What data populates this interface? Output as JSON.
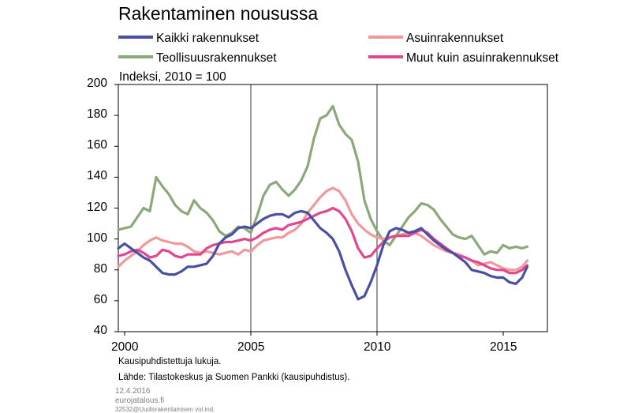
{
  "chart_data": {
    "type": "line",
    "title": "Rakentaminen nousussa",
    "unit_label": "Indeksi, 2010 = 100",
    "xlim": [
      1999.75,
      2016.75
    ],
    "ylim": [
      40,
      200
    ],
    "yticks": [
      40,
      60,
      80,
      100,
      120,
      140,
      160,
      180,
      200
    ],
    "xticks": [
      2000,
      2005,
      2010,
      2015
    ],
    "xtick_labels": [
      "2000",
      "2005",
      "2010",
      "2015"
    ],
    "grid": "vertical lines at 2005 and 2010",
    "legend_position": "top",
    "series": [
      {
        "name": "Kaikki rakennukset",
        "color": "#4a4fa3",
        "points": [
          [
            1999.75,
            94
          ],
          [
            2000,
            97
          ],
          [
            2000.25,
            94
          ],
          [
            2000.5,
            91
          ],
          [
            2000.75,
            88
          ],
          [
            2001,
            86
          ],
          [
            2001.25,
            82
          ],
          [
            2001.5,
            78
          ],
          [
            2001.75,
            77
          ],
          [
            2002,
            77
          ],
          [
            2002.25,
            79
          ],
          [
            2002.5,
            82
          ],
          [
            2002.75,
            82
          ],
          [
            2003,
            83
          ],
          [
            2003.25,
            84
          ],
          [
            2003.5,
            89
          ],
          [
            2003.75,
            97
          ],
          [
            2004,
            101
          ],
          [
            2004.25,
            103
          ],
          [
            2004.5,
            107
          ],
          [
            2004.75,
            108
          ],
          [
            2005,
            107
          ],
          [
            2005.25,
            110
          ],
          [
            2005.5,
            113
          ],
          [
            2005.75,
            115
          ],
          [
            2006,
            116
          ],
          [
            2006.25,
            116
          ],
          [
            2006.5,
            114
          ],
          [
            2006.75,
            117
          ],
          [
            2007,
            118
          ],
          [
            2007.25,
            117
          ],
          [
            2007.5,
            112
          ],
          [
            2007.75,
            107
          ],
          [
            2008,
            104
          ],
          [
            2008.25,
            100
          ],
          [
            2008.5,
            92
          ],
          [
            2008.75,
            80
          ],
          [
            2009,
            70
          ],
          [
            2009.25,
            61
          ],
          [
            2009.5,
            63
          ],
          [
            2009.75,
            72
          ],
          [
            2010,
            83
          ],
          [
            2010.25,
            96
          ],
          [
            2010.5,
            105
          ],
          [
            2010.75,
            107
          ],
          [
            2011,
            106
          ],
          [
            2011.25,
            104
          ],
          [
            2011.5,
            105
          ],
          [
            2011.75,
            107
          ],
          [
            2012,
            103
          ],
          [
            2012.25,
            99
          ],
          [
            2012.5,
            96
          ],
          [
            2012.75,
            93
          ],
          [
            2013,
            91
          ],
          [
            2013.25,
            88
          ],
          [
            2013.5,
            85
          ],
          [
            2013.75,
            80
          ],
          [
            2014,
            79
          ],
          [
            2014.25,
            78
          ],
          [
            2014.5,
            76
          ],
          [
            2014.75,
            75
          ],
          [
            2015,
            75
          ],
          [
            2015.25,
            72
          ],
          [
            2015.5,
            71
          ],
          [
            2015.75,
            75
          ],
          [
            2015.95,
            82
          ]
        ]
      },
      {
        "name": "Asuinrakennukset",
        "color": "#f0999d",
        "points": [
          [
            1999.75,
            82
          ],
          [
            2000,
            86
          ],
          [
            2000.25,
            89
          ],
          [
            2000.5,
            92
          ],
          [
            2000.75,
            96
          ],
          [
            2001,
            99
          ],
          [
            2001.25,
            101
          ],
          [
            2001.5,
            99
          ],
          [
            2001.75,
            98
          ],
          [
            2002,
            97
          ],
          [
            2002.25,
            97
          ],
          [
            2002.5,
            95
          ],
          [
            2002.75,
            92
          ],
          [
            2003,
            91
          ],
          [
            2003.25,
            92
          ],
          [
            2003.5,
            91
          ],
          [
            2003.75,
            90
          ],
          [
            2004,
            91
          ],
          [
            2004.25,
            92
          ],
          [
            2004.5,
            90
          ],
          [
            2004.75,
            93
          ],
          [
            2005,
            92
          ],
          [
            2005.25,
            96
          ],
          [
            2005.5,
            99
          ],
          [
            2005.75,
            100
          ],
          [
            2006,
            101
          ],
          [
            2006.25,
            101
          ],
          [
            2006.5,
            104
          ],
          [
            2006.75,
            106
          ],
          [
            2007,
            110
          ],
          [
            2007.25,
            117
          ],
          [
            2007.5,
            122
          ],
          [
            2007.75,
            127
          ],
          [
            2008,
            131
          ],
          [
            2008.25,
            133
          ],
          [
            2008.5,
            131
          ],
          [
            2008.75,
            125
          ],
          [
            2009,
            116
          ],
          [
            2009.25,
            110
          ],
          [
            2009.5,
            106
          ],
          [
            2009.75,
            103
          ],
          [
            2010,
            101
          ],
          [
            2010.25,
            100
          ],
          [
            2010.5,
            101
          ],
          [
            2010.75,
            102
          ],
          [
            2011,
            103
          ],
          [
            2011.25,
            104
          ],
          [
            2011.5,
            104
          ],
          [
            2011.75,
            102
          ],
          [
            2012,
            99
          ],
          [
            2012.25,
            96
          ],
          [
            2012.5,
            94
          ],
          [
            2012.75,
            92
          ],
          [
            2013,
            91
          ],
          [
            2013.25,
            90
          ],
          [
            2013.5,
            88
          ],
          [
            2013.75,
            86
          ],
          [
            2014,
            83
          ],
          [
            2014.25,
            84
          ],
          [
            2014.5,
            85
          ],
          [
            2014.75,
            83
          ],
          [
            2015,
            81
          ],
          [
            2015.25,
            80
          ],
          [
            2015.5,
            80
          ],
          [
            2015.75,
            82
          ],
          [
            2015.95,
            86
          ]
        ]
      },
      {
        "name": "Teollisuusrakennukset",
        "color": "#8aa878",
        "points": [
          [
            1999.75,
            106
          ],
          [
            2000,
            107
          ],
          [
            2000.25,
            108
          ],
          [
            2000.5,
            114
          ],
          [
            2000.75,
            120
          ],
          [
            2001,
            118
          ],
          [
            2001.25,
            140
          ],
          [
            2001.5,
            134
          ],
          [
            2001.75,
            129
          ],
          [
            2002,
            122
          ],
          [
            2002.25,
            118
          ],
          [
            2002.5,
            116
          ],
          [
            2002.75,
            125
          ],
          [
            2003,
            120
          ],
          [
            2003.25,
            117
          ],
          [
            2003.5,
            112
          ],
          [
            2003.75,
            105
          ],
          [
            2004,
            102
          ],
          [
            2004.25,
            104
          ],
          [
            2004.5,
            108
          ],
          [
            2004.75,
            107
          ],
          [
            2005,
            104
          ],
          [
            2005.25,
            115
          ],
          [
            2005.5,
            128
          ],
          [
            2005.75,
            135
          ],
          [
            2006,
            137
          ],
          [
            2006.25,
            132
          ],
          [
            2006.5,
            128
          ],
          [
            2006.75,
            132
          ],
          [
            2007,
            138
          ],
          [
            2007.25,
            147
          ],
          [
            2007.5,
            165
          ],
          [
            2007.75,
            178
          ],
          [
            2008,
            180
          ],
          [
            2008.25,
            186
          ],
          [
            2008.5,
            174
          ],
          [
            2008.75,
            168
          ],
          [
            2009,
            164
          ],
          [
            2009.25,
            150
          ],
          [
            2009.5,
            125
          ],
          [
            2009.75,
            113
          ],
          [
            2010,
            105
          ],
          [
            2010.25,
            99
          ],
          [
            2010.5,
            96
          ],
          [
            2010.75,
            102
          ],
          [
            2011,
            108
          ],
          [
            2011.25,
            114
          ],
          [
            2011.5,
            118
          ],
          [
            2011.75,
            123
          ],
          [
            2012,
            122
          ],
          [
            2012.25,
            119
          ],
          [
            2012.5,
            113
          ],
          [
            2012.75,
            108
          ],
          [
            2013,
            103
          ],
          [
            2013.25,
            101
          ],
          [
            2013.5,
            100
          ],
          [
            2013.75,
            102
          ],
          [
            2014,
            96
          ],
          [
            2014.25,
            90
          ],
          [
            2014.5,
            92
          ],
          [
            2014.75,
            91
          ],
          [
            2015,
            96
          ],
          [
            2015.25,
            94
          ],
          [
            2015.5,
            95
          ],
          [
            2015.75,
            94
          ],
          [
            2015.95,
            95
          ]
        ]
      },
      {
        "name": "Muut kuin asuinrakennukset",
        "color": "#e0478f",
        "points": [
          [
            1999.75,
            89
          ],
          [
            2000,
            90
          ],
          [
            2000.25,
            92
          ],
          [
            2000.5,
            93
          ],
          [
            2000.75,
            91
          ],
          [
            2001,
            88
          ],
          [
            2001.25,
            89
          ],
          [
            2001.5,
            93
          ],
          [
            2001.75,
            92
          ],
          [
            2002,
            89
          ],
          [
            2002.25,
            88
          ],
          [
            2002.5,
            90
          ],
          [
            2002.75,
            90
          ],
          [
            2003,
            90
          ],
          [
            2003.25,
            94
          ],
          [
            2003.5,
            96
          ],
          [
            2003.75,
            97
          ],
          [
            2004,
            98
          ],
          [
            2004.25,
            98
          ],
          [
            2004.5,
            99
          ],
          [
            2004.75,
            100
          ],
          [
            2005,
            99
          ],
          [
            2005.25,
            101
          ],
          [
            2005.5,
            104
          ],
          [
            2005.75,
            106
          ],
          [
            2006,
            107
          ],
          [
            2006.25,
            106
          ],
          [
            2006.5,
            109
          ],
          [
            2006.75,
            110
          ],
          [
            2007,
            111
          ],
          [
            2007.25,
            113
          ],
          [
            2007.5,
            115
          ],
          [
            2007.75,
            117
          ],
          [
            2008,
            118
          ],
          [
            2008.25,
            120
          ],
          [
            2008.5,
            118
          ],
          [
            2008.75,
            113
          ],
          [
            2009,
            105
          ],
          [
            2009.25,
            94
          ],
          [
            2009.5,
            88
          ],
          [
            2009.75,
            89
          ],
          [
            2010,
            94
          ],
          [
            2010.25,
            98
          ],
          [
            2010.5,
            101
          ],
          [
            2010.75,
            102
          ],
          [
            2011,
            102
          ],
          [
            2011.25,
            102
          ],
          [
            2011.5,
            104
          ],
          [
            2011.75,
            106
          ],
          [
            2012,
            104
          ],
          [
            2012.25,
            100
          ],
          [
            2012.5,
            97
          ],
          [
            2012.75,
            94
          ],
          [
            2013,
            91
          ],
          [
            2013.25,
            89
          ],
          [
            2013.5,
            88
          ],
          [
            2013.75,
            86
          ],
          [
            2014,
            85
          ],
          [
            2014.25,
            83
          ],
          [
            2014.5,
            81
          ],
          [
            2014.75,
            80
          ],
          [
            2015,
            80
          ],
          [
            2015.25,
            78
          ],
          [
            2015.5,
            78
          ],
          [
            2015.75,
            80
          ],
          [
            2015.95,
            83
          ]
        ]
      }
    ]
  },
  "notes": {
    "line1": "Kausipuhdistettuja lukuja.",
    "line2": "Lähde: Tilastokeskus ja Suomen Pankki (kausipuhdistus)."
  },
  "footer": {
    "date": "12.4.2016",
    "site": "eurojatalous.fi",
    "code": "32532@Uudisrakentamisen vol.ind."
  }
}
